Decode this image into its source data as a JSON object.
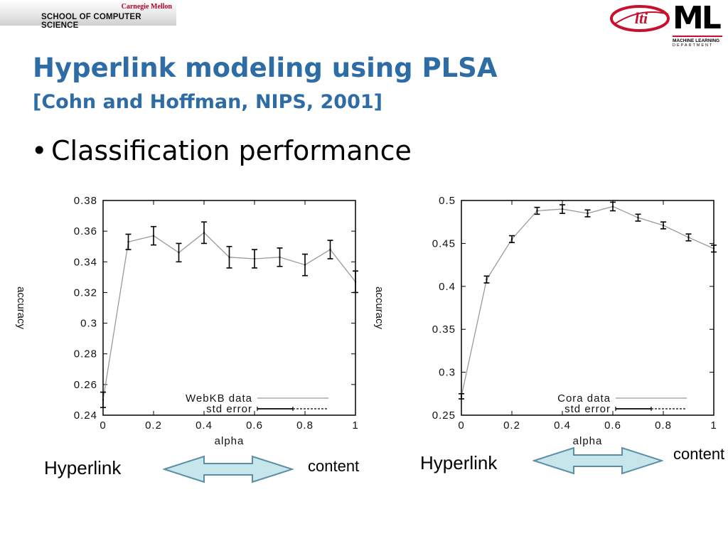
{
  "header": {
    "university": "Carnegie Mellon",
    "school": "SCHOOL OF COMPUTER SCIENCE"
  },
  "logos": {
    "lti": "lti",
    "ml": "ML",
    "ml_sub1": "MACHINE LEARNING",
    "ml_sub2": "DEPARTMENT"
  },
  "slide": {
    "title": "Hyperlink modeling using PLSA",
    "subtitle": "[Cohn and Hoffman, NIPS, 2001]",
    "bullet": "Classification performance",
    "bullet_glyph": "•"
  },
  "captions": {
    "left_hyperlink": "Hyperlink",
    "left_content": "content",
    "right_hyperlink": "Hyperlink",
    "right_content": "content"
  },
  "colors": {
    "title": "#2e6ca6",
    "arrow_fill": "#c6e6ec",
    "arrow_stroke": "#5b8fa8",
    "cmu_red": "#b3002b"
  },
  "chart_data": [
    {
      "type": "line",
      "xlabel": "alpha",
      "ylabel": "accuracy",
      "xlim": [
        0,
        1
      ],
      "ylim": [
        0.24,
        0.38
      ],
      "x_ticks": [
        "0",
        "0.2",
        "0.4",
        "0.6",
        "0.8",
        "1"
      ],
      "y_ticks": [
        "0.24",
        "0.26",
        "0.28",
        "0.3",
        "0.32",
        "0.34",
        "0.36",
        "0.38"
      ],
      "legend_position": "bottom-right",
      "series": [
        {
          "name": "WebKB data",
          "error_name": "std error",
          "x": [
            0,
            0.1,
            0.2,
            0.3,
            0.4,
            0.5,
            0.6,
            0.7,
            0.8,
            0.9,
            1.0
          ],
          "y": [
            0.25,
            0.353,
            0.357,
            0.346,
            0.359,
            0.343,
            0.342,
            0.343,
            0.338,
            0.348,
            0.327
          ],
          "err": [
            0.005,
            0.005,
            0.006,
            0.006,
            0.007,
            0.007,
            0.006,
            0.006,
            0.007,
            0.006,
            0.007
          ]
        }
      ]
    },
    {
      "type": "line",
      "xlabel": "alpha",
      "ylabel": "accuracy",
      "xlim": [
        0,
        1
      ],
      "ylim": [
        0.25,
        0.5
      ],
      "x_ticks": [
        "0",
        "0.2",
        "0.4",
        "0.6",
        "0.8",
        "1"
      ],
      "y_ticks": [
        "0.25",
        "0.3",
        "0.35",
        "0.4",
        "0.45",
        "0.5"
      ],
      "legend_position": "bottom-right",
      "series": [
        {
          "name": "Cora data",
          "error_name": "std error",
          "x": [
            0,
            0.1,
            0.2,
            0.3,
            0.4,
            0.5,
            0.6,
            0.7,
            0.8,
            0.9,
            1.0
          ],
          "y": [
            0.272,
            0.408,
            0.455,
            0.488,
            0.49,
            0.485,
            0.493,
            0.48,
            0.471,
            0.457,
            0.444
          ],
          "err": [
            0.003,
            0.004,
            0.004,
            0.004,
            0.005,
            0.004,
            0.005,
            0.004,
            0.004,
            0.004,
            0.004
          ]
        }
      ]
    }
  ]
}
